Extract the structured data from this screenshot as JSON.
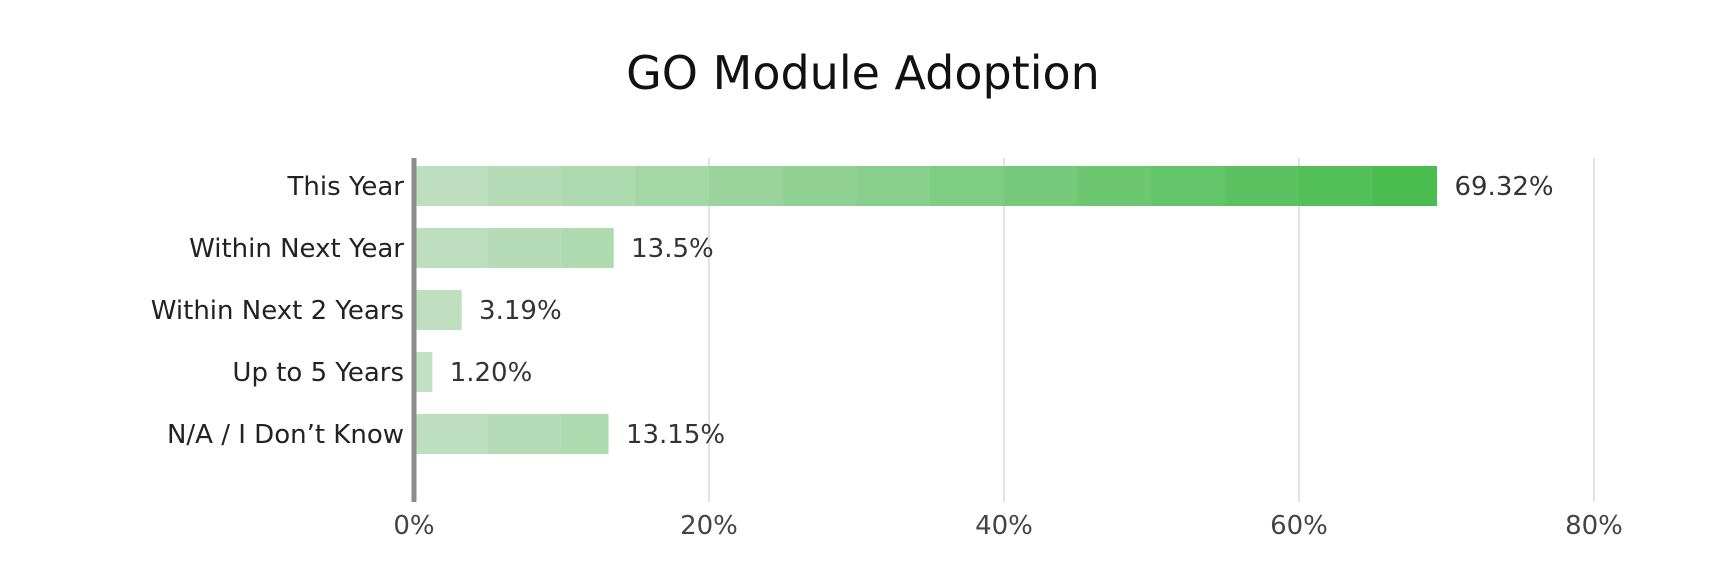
{
  "chart_data": {
    "type": "bar",
    "orientation": "horizontal",
    "title": "GO Module Adoption",
    "xlabel": "",
    "ylabel": "",
    "categories": [
      "This Year",
      "Within Next Year",
      "Within Next 2 Years",
      "Up to 5 Years",
      "N/A / I Don’t Know"
    ],
    "values": [
      69.32,
      13.5,
      3.19,
      1.2,
      13.15
    ],
    "value_labels": [
      "69.32%",
      "13.5%",
      "3.19%",
      "1.20%",
      "13.15%"
    ],
    "xlim": [
      0,
      80
    ],
    "xticks": [
      0,
      20,
      40,
      60,
      80
    ],
    "xtick_labels": [
      "0%",
      "20%",
      "40%",
      "60%",
      "80%"
    ],
    "grid": "vertical",
    "legend": "none",
    "colors": {
      "bar_light": "#c3e0c3",
      "bar_dark": "#46bb4c",
      "gridline": "#e2e2e2",
      "axis": "#8c8c8c"
    }
  }
}
